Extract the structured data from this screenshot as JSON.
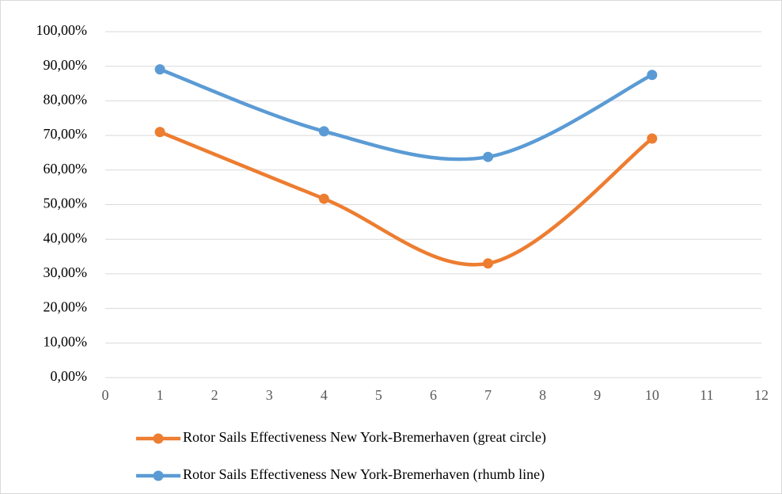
{
  "chart_data": {
    "type": "line",
    "x": [
      1,
      4,
      7,
      10
    ],
    "series": [
      {
        "name": "Rotor Sails Effectiveness New York-Bremerhaven (great circle)",
        "color": "#ed7d31",
        "values": [
          71,
          51.7,
          33,
          69.1
        ]
      },
      {
        "name": "Rotor Sails Effectiveness New York-Bremerhaven (rhumb line)",
        "color": "#5b9bd5",
        "values": [
          89.1,
          71.2,
          63.8,
          87.5
        ]
      }
    ],
    "xlim": [
      0,
      12
    ],
    "xticks": [
      0,
      1,
      2,
      3,
      4,
      5,
      6,
      7,
      8,
      9,
      10,
      11,
      12
    ],
    "ylim": [
      0,
      100
    ],
    "yticks": [
      {
        "value": 0,
        "label": "0,00%"
      },
      {
        "value": 10,
        "label": "10,00%"
      },
      {
        "value": 20,
        "label": "20,00%"
      },
      {
        "value": 30,
        "label": "30,00%"
      },
      {
        "value": 40,
        "label": "40,00%"
      },
      {
        "value": 50,
        "label": "50,00%"
      },
      {
        "value": 60,
        "label": "60,00%"
      },
      {
        "value": 70,
        "label": "70,00%"
      },
      {
        "value": 80,
        "label": "80,00%"
      },
      {
        "value": 90,
        "label": "90,00%"
      },
      {
        "value": 100,
        "label": "100,00%"
      }
    ],
    "grid": true,
    "smooth": true,
    "legend": "bottom"
  }
}
